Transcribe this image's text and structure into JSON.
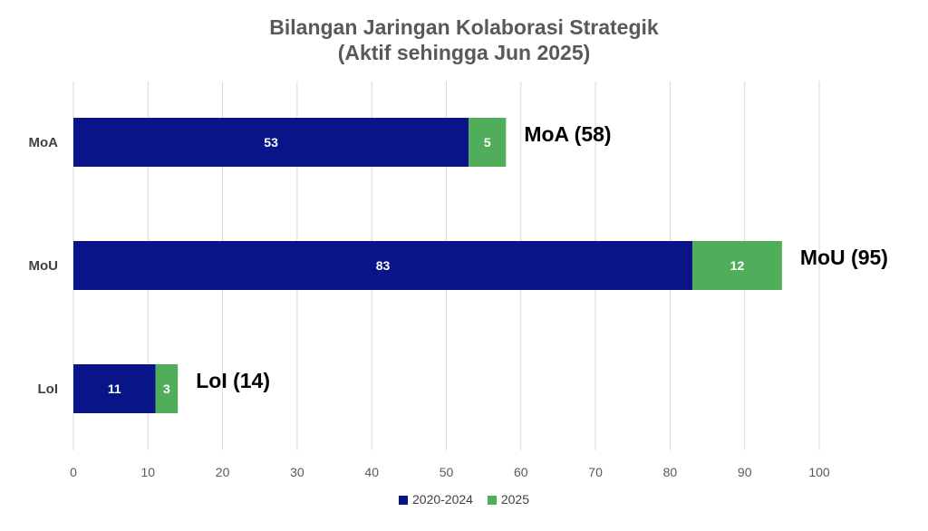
{
  "chart_data": {
    "type": "bar",
    "orientation": "horizontal",
    "stacked": true,
    "title": "Bilangan Jaringan Kolaborasi Strategik",
    "subtitle": "(Aktif sehingga Jun 2025)",
    "categories": [
      "MoA",
      "MoU",
      "LoI"
    ],
    "series": [
      {
        "name": "2020-2024",
        "values": [
          53,
          83,
          11
        ],
        "color": "#0a1489"
      },
      {
        "name": "2025",
        "values": [
          5,
          12,
          3
        ],
        "color": "#50ae5a"
      }
    ],
    "totals_labels": [
      "MoA (58)",
      "MoU (95)",
      "LoI (14)"
    ],
    "xlim": [
      0,
      100
    ],
    "xticks": [
      0,
      10,
      20,
      30,
      40,
      50,
      60,
      70,
      80,
      90,
      100
    ],
    "grid": "vertical",
    "legend_position": "bottom"
  }
}
